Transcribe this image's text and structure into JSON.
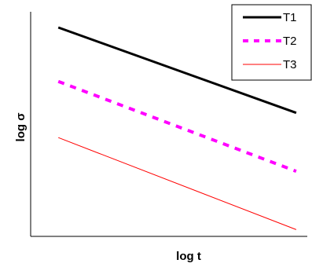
{
  "chart_data": {
    "type": "line",
    "title": "",
    "xlabel": "log t",
    "ylabel": "log σ",
    "x_ticks_shown": false,
    "y_ticks_shown": false,
    "grid": false,
    "legend_position": "top-right",
    "xlim": [
      0,
      10
    ],
    "ylim": [
      0,
      10
    ],
    "series": [
      {
        "name": "T1",
        "x": [
          1,
          9.6
        ],
        "y": [
          9.3,
          5.5
        ],
        "color": "#000000",
        "style": "solid-thick"
      },
      {
        "name": "T2",
        "x": [
          1,
          9.6
        ],
        "y": [
          6.9,
          2.9
        ],
        "color": "#ff00ff",
        "style": "dashed"
      },
      {
        "name": "T3",
        "x": [
          1,
          9.6
        ],
        "y": [
          4.4,
          0.3
        ],
        "color": "#ff0000",
        "style": "solid-thin"
      }
    ]
  }
}
